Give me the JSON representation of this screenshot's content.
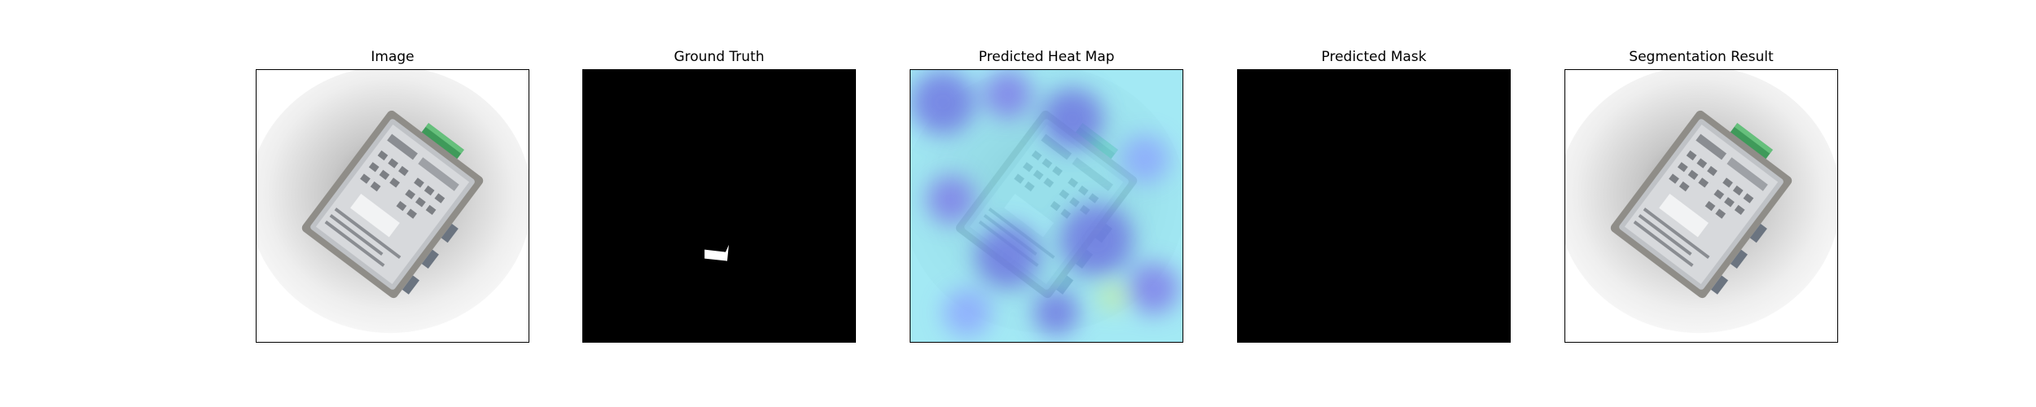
{
  "panels": [
    {
      "title": "Image"
    },
    {
      "title": "Ground Truth"
    },
    {
      "title": "Predicted Heat Map"
    },
    {
      "title": "Predicted Mask"
    },
    {
      "title": "Segmentation Result"
    }
  ],
  "colors": {
    "frame_border": "#000000",
    "mask_background": "#000000",
    "mask_foreground": "#ffffff",
    "device_body": "#9a9893",
    "device_label": "#c9ccd0",
    "terminal_block": "#3f9a5a",
    "heatmap_cool": "#7fe0f0",
    "heatmap_low": "#6a6ae0"
  },
  "mask_foreground_fraction": {
    "ground_truth": 0.002,
    "predicted": 0.0
  }
}
